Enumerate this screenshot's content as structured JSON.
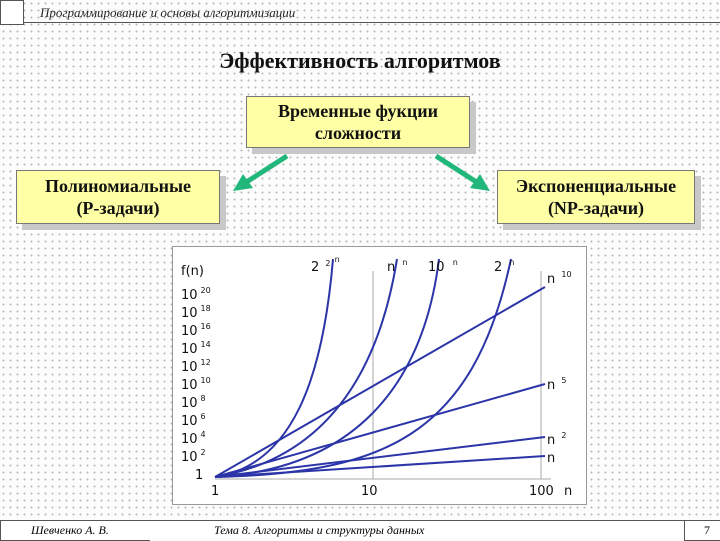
{
  "header": {
    "title": "Программирование и основы алгоритмизации"
  },
  "slide": {
    "title": "Эффективность алгоритмов",
    "center_box": "Временные фукции\nсложности",
    "left_box": "Полиномиальные\n(Р-задачи)",
    "right_box": "Экспоненциальные\n(NP-задачи)"
  },
  "chart": {
    "ylabel": "f(n)",
    "y_ticks": [
      {
        "base": "10",
        "exp": "20"
      },
      {
        "base": "10",
        "exp": "18"
      },
      {
        "base": "10",
        "exp": "16"
      },
      {
        "base": "10",
        "exp": "14"
      },
      {
        "base": "10",
        "exp": "12"
      },
      {
        "base": "10",
        "exp": "10"
      },
      {
        "base": "10",
        "exp": "8"
      },
      {
        "base": "10",
        "exp": "6"
      },
      {
        "base": "10",
        "exp": "4"
      },
      {
        "base": "10",
        "exp": "2"
      },
      {
        "base": "1",
        "exp": ""
      }
    ],
    "x_ticks": [
      "1",
      "10",
      "100"
    ],
    "xlabel": "n",
    "top_labels": [
      {
        "base": "2",
        "sup": "2",
        "sup2": "n"
      },
      {
        "base": "n",
        "sup": "n"
      },
      {
        "base": "10",
        "sup": "n"
      },
      {
        "base": "2",
        "sup": "n"
      }
    ],
    "right_labels": [
      {
        "base": "n",
        "sup": "10"
      },
      {
        "base": "n",
        "sup": "5"
      },
      {
        "base": "n",
        "sup": "2"
      },
      {
        "base": "n",
        "sup": ""
      }
    ],
    "line_color": "#2b35a8"
  },
  "footer": {
    "author": "Шевченко А. В.",
    "topic": "Тема 8. Алгоритмы и структуры данных",
    "page": "7"
  }
}
